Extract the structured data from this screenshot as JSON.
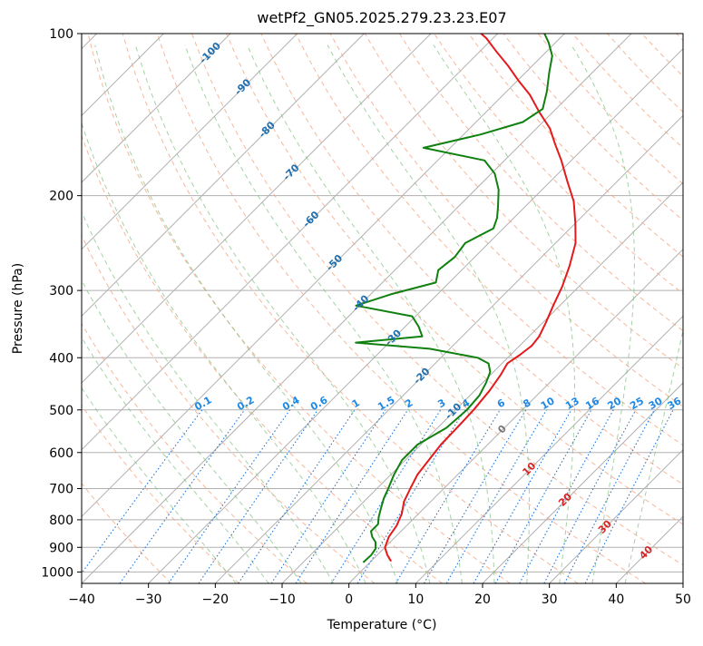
{
  "chart_data": {
    "type": "line",
    "title": "wetPf2_GN05.2025.279.23.23.E07",
    "xlabel": "Temperature (°C)",
    "ylabel": "Pressure (hPa)",
    "xlim": [
      -40,
      50
    ],
    "ylim": [
      1050,
      100
    ],
    "y_scale": "log",
    "skew": "skew-T (45°)",
    "x_ticks": [
      -40,
      -30,
      -20,
      -10,
      0,
      10,
      20,
      30,
      40,
      50
    ],
    "x_tick_labels": [
      "−40",
      "−30",
      "−20",
      "−10",
      "0",
      "10",
      "20",
      "30",
      "40",
      "50"
    ],
    "y_ticks": [
      100,
      200,
      300,
      400,
      500,
      600,
      700,
      800,
      900,
      1000
    ],
    "y_tick_labels": [
      "100",
      "200",
      "300",
      "400",
      "500",
      "600",
      "700",
      "800",
      "900",
      "1000"
    ],
    "grid": true,
    "colors": {
      "temperature": "#e41a1c",
      "dewpoint": "#108010",
      "dry_adiabat": "#f4a582",
      "moist_adiabat": "#7fbf7f",
      "mixing_ratio": "#1f77dd",
      "mixing_label": "#1e88e5",
      "isotherm_label": "#1f6fb0",
      "warm_isotherm_label": "#d62728",
      "zero_label": "#777777",
      "grid": "#b0b0b0"
    },
    "series": [
      {
        "key": "temperature",
        "points": [
          [
            3,
            955
          ],
          [
            1.5,
            930
          ],
          [
            0,
            900
          ],
          [
            -1,
            860
          ],
          [
            -1.5,
            820
          ],
          [
            -2.5,
            780
          ],
          [
            -4,
            740
          ],
          [
            -5,
            700
          ],
          [
            -6,
            660
          ],
          [
            -6.5,
            620
          ],
          [
            -7,
            580
          ],
          [
            -7.1,
            540
          ],
          [
            -7.3,
            500
          ],
          [
            -7.8,
            460
          ],
          [
            -8.5,
            430
          ],
          [
            -9.2,
            410
          ],
          [
            -8.6,
            395
          ],
          [
            -8.2,
            380
          ],
          [
            -8.5,
            365
          ],
          [
            -9.5,
            345
          ],
          [
            -11,
            320
          ],
          [
            -12.5,
            295
          ],
          [
            -14.5,
            270
          ],
          [
            -17,
            245
          ],
          [
            -20,
            225
          ],
          [
            -23.5,
            205
          ],
          [
            -27.5,
            188
          ],
          [
            -31.5,
            172
          ],
          [
            -35,
            160
          ],
          [
            -38,
            150
          ],
          [
            -42,
            140
          ],
          [
            -46,
            130
          ],
          [
            -50,
            122
          ],
          [
            -53.5,
            115
          ],
          [
            -57.5,
            108
          ],
          [
            -61,
            102
          ],
          [
            -62.5,
            100
          ]
        ]
      },
      {
        "key": "dewpoint",
        "points": [
          [
            -1,
            960
          ],
          [
            -0.9,
            930
          ],
          [
            -1.2,
            905
          ],
          [
            -2.2,
            880
          ],
          [
            -3.5,
            860
          ],
          [
            -4.5,
            840
          ],
          [
            -4.5,
            815
          ],
          [
            -5.5,
            790
          ],
          [
            -6.5,
            760
          ],
          [
            -7.5,
            730
          ],
          [
            -8.3,
            700
          ],
          [
            -9.5,
            660
          ],
          [
            -10.5,
            620
          ],
          [
            -10.5,
            580
          ],
          [
            -8.7,
            540
          ],
          [
            -8.3,
            500
          ],
          [
            -8.6,
            470
          ],
          [
            -9.5,
            445
          ],
          [
            -10.5,
            425
          ],
          [
            -12,
            410
          ],
          [
            -14.5,
            400
          ],
          [
            -23,
            385
          ],
          [
            -35,
            375
          ],
          [
            -26,
            365
          ],
          [
            -28,
            350
          ],
          [
            -30.5,
            335
          ],
          [
            -40.5,
            320
          ],
          [
            -37,
            305
          ],
          [
            -32,
            290
          ],
          [
            -33.5,
            275
          ],
          [
            -33,
            260
          ],
          [
            -33.5,
            245
          ],
          [
            -31.5,
            230
          ],
          [
            -32.5,
            220
          ],
          [
            -34,
            210
          ],
          [
            -36.5,
            195
          ],
          [
            -39.5,
            182
          ],
          [
            -43,
            172
          ],
          [
            -54,
            163
          ],
          [
            -47.5,
            154
          ],
          [
            -43,
            146
          ],
          [
            -42,
            138
          ],
          [
            -44,
            128
          ],
          [
            -46.5,
            118
          ],
          [
            -48.5,
            110
          ],
          [
            -51,
            104
          ],
          [
            -53,
            100
          ]
        ]
      }
    ],
    "isotherm_labels": [
      "-100",
      "-90",
      "-80",
      "-70",
      "-60",
      "-50",
      "-40",
      "-30",
      "-20",
      "-10",
      "0",
      "10",
      "20",
      "30",
      "40"
    ],
    "mixing_ratio_labels": [
      "0.1",
      "0.2",
      "0.4",
      "0.6",
      "1",
      "1.5",
      "2",
      "3",
      "4",
      "6",
      "8",
      "10",
      "13",
      "16",
      "20",
      "25",
      "30",
      "36"
    ]
  }
}
